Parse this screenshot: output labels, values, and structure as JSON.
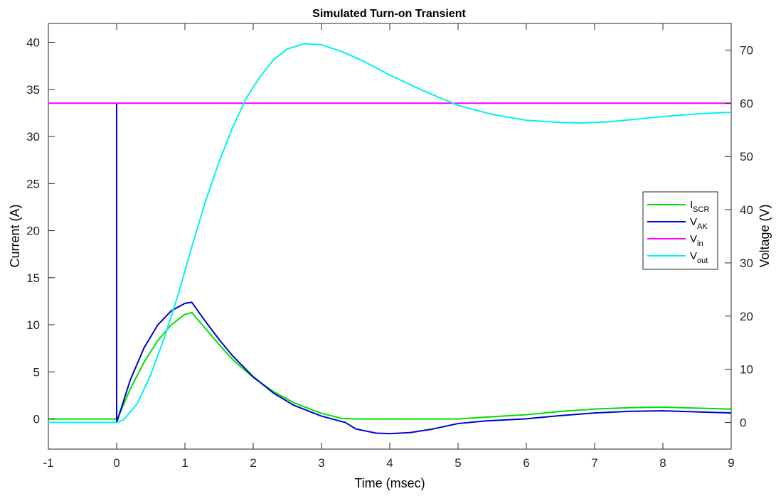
{
  "chart_data": {
    "type": "line",
    "title": "Simulated Turn-on Transient",
    "xlabel": "Time (msec)",
    "ylabel_left": "Current (A)",
    "ylabel_right": "Voltage (V)",
    "xlim": [
      -1,
      9
    ],
    "ylim_left": [
      -3.2,
      42
    ],
    "ylim_right": [
      -5,
      75
    ],
    "xticks": [
      -1,
      0,
      1,
      2,
      3,
      4,
      5,
      6,
      7,
      8,
      9
    ],
    "yticks_left": [
      0,
      5,
      10,
      15,
      20,
      25,
      30,
      35,
      40
    ],
    "yticks_right": [
      0,
      10,
      20,
      30,
      40,
      50,
      60,
      70
    ],
    "grid": false,
    "legend_position": "right-middle",
    "series": [
      {
        "name": "I_SCR",
        "label_main": "I",
        "label_sub": "SCR",
        "axis": "left",
        "color": "#00e000",
        "points": [
          [
            -1,
            0
          ],
          [
            0,
            0
          ],
          [
            0,
            -0.2
          ],
          [
            0.2,
            3.2
          ],
          [
            0.4,
            6.0
          ],
          [
            0.6,
            8.3
          ],
          [
            0.8,
            10.0
          ],
          [
            1.0,
            11.1
          ],
          [
            1.1,
            11.3
          ],
          [
            1.3,
            9.6
          ],
          [
            1.5,
            7.9
          ],
          [
            1.7,
            6.3
          ],
          [
            2.0,
            4.4
          ],
          [
            2.3,
            2.9
          ],
          [
            2.6,
            1.7
          ],
          [
            3.0,
            0.6
          ],
          [
            3.3,
            0.05
          ],
          [
            3.5,
            0
          ],
          [
            4.0,
            0
          ],
          [
            4.5,
            0
          ],
          [
            5.0,
            0
          ],
          [
            5.4,
            0.2
          ],
          [
            6.0,
            0.45
          ],
          [
            6.5,
            0.8
          ],
          [
            7.0,
            1.05
          ],
          [
            7.5,
            1.2
          ],
          [
            8.0,
            1.25
          ],
          [
            8.5,
            1.15
          ],
          [
            9.0,
            1.05
          ]
        ]
      },
      {
        "name": "V_AK",
        "label_main": "V",
        "label_sub": "AK",
        "axis": "right",
        "color": "#0000d0",
        "points": [
          [
            0,
            60
          ],
          [
            0,
            0
          ],
          [
            0.2,
            8.0
          ],
          [
            0.4,
            14.0
          ],
          [
            0.6,
            18.3
          ],
          [
            0.8,
            21.0
          ],
          [
            1.0,
            22.4
          ],
          [
            1.1,
            22.6
          ],
          [
            1.3,
            19.0
          ],
          [
            1.5,
            15.6
          ],
          [
            1.7,
            12.5
          ],
          [
            2.0,
            8.6
          ],
          [
            2.3,
            5.5
          ],
          [
            2.6,
            3.2
          ],
          [
            3.0,
            1.2
          ],
          [
            3.35,
            0
          ],
          [
            3.5,
            -1.2
          ],
          [
            3.8,
            -2.0
          ],
          [
            4.0,
            -2.1
          ],
          [
            4.3,
            -1.9
          ],
          [
            4.6,
            -1.3
          ],
          [
            5.0,
            -0.2
          ],
          [
            5.4,
            0.3
          ],
          [
            6.0,
            0.7
          ],
          [
            6.5,
            1.3
          ],
          [
            7.0,
            1.8
          ],
          [
            7.5,
            2.1
          ],
          [
            8.0,
            2.2
          ],
          [
            8.5,
            2.0
          ],
          [
            9.0,
            1.8
          ]
        ]
      },
      {
        "name": "V_in",
        "label_main": "V",
        "label_sub": "in",
        "axis": "right",
        "color": "#ff00ff",
        "points": [
          [
            -1,
            60
          ],
          [
            9,
            60
          ]
        ]
      },
      {
        "name": "V_out",
        "label_main": "V",
        "label_sub": "out",
        "axis": "right",
        "color": "#00f0f0",
        "points": [
          [
            -1,
            0
          ],
          [
            0,
            0
          ],
          [
            0.1,
            0.5
          ],
          [
            0.3,
            3.5
          ],
          [
            0.5,
            9
          ],
          [
            0.7,
            16
          ],
          [
            0.9,
            24
          ],
          [
            1.1,
            33
          ],
          [
            1.3,
            41.5
          ],
          [
            1.5,
            49
          ],
          [
            1.7,
            55.5
          ],
          [
            1.9,
            61
          ],
          [
            2.1,
            65
          ],
          [
            2.3,
            68.2
          ],
          [
            2.5,
            70.2
          ],
          [
            2.75,
            71.2
          ],
          [
            3.0,
            71
          ],
          [
            3.3,
            69.7
          ],
          [
            3.6,
            68
          ],
          [
            4.0,
            65.3
          ],
          [
            4.5,
            62.3
          ],
          [
            5.0,
            59.6
          ],
          [
            5.5,
            57.9
          ],
          [
            6.0,
            56.8
          ],
          [
            6.5,
            56.4
          ],
          [
            6.8,
            56.3
          ],
          [
            7.2,
            56.5
          ],
          [
            7.6,
            57.0
          ],
          [
            8.0,
            57.5
          ],
          [
            8.5,
            58.0
          ],
          [
            9.0,
            58.3
          ]
        ]
      }
    ]
  }
}
